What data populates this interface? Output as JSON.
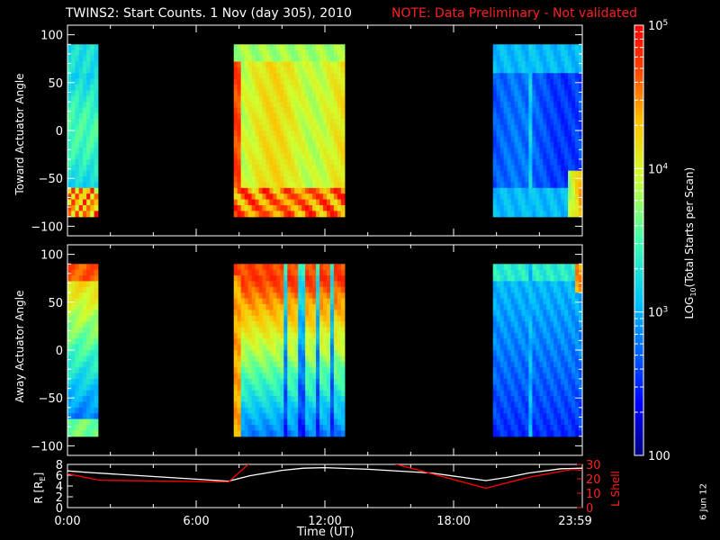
{
  "header": {
    "title": "TWINS2: Start Counts.  1 Nov (day 305), 2010",
    "note": "NOTE: Data Preliminary - Not validated"
  },
  "stamp": "6 Jun 12",
  "chart_data": [
    {
      "type": "heatmap",
      "panel": "toward",
      "ylabel": "Toward Actuator Angle",
      "ylim": [
        -110,
        110
      ],
      "yticks": [
        "100",
        "50",
        "0",
        "-50",
        "-100"
      ],
      "xlim_hours": [
        0,
        24
      ],
      "data_blocks_ut": [
        [
          "0:00",
          "1:25"
        ],
        [
          "7:45",
          "12:55"
        ],
        [
          "19:50",
          "24:00"
        ]
      ],
      "colorscale": "rainbow (blue low, red high)",
      "description_levels": {
        "block1": "cyan-green, red/orange speckle near -80",
        "block2": "yellow-orange, red near -80 and at start",
        "block3": "blue, cyan at top/bottom edges"
      }
    },
    {
      "type": "heatmap",
      "panel": "away",
      "ylabel": "Away Actuator Angle",
      "ylim": [
        -110,
        110
      ],
      "yticks": [
        "100",
        "50",
        "0",
        "-50",
        "-100"
      ],
      "xlim_hours": [
        0,
        24
      ],
      "data_blocks_ut": [
        [
          "0:00",
          "1:25"
        ],
        [
          "7:45",
          "12:55"
        ],
        [
          "19:50",
          "24:00"
        ]
      ],
      "colorscale": "rainbow (blue low, red high)"
    },
    {
      "type": "colorbar",
      "label": "LOG10(Total Starts per Scan)",
      "label_main": "LOG",
      "label_sub": "10",
      "label_rest": "(Total Starts per Scan)",
      "ticks": [
        "10^5",
        "10^4",
        "10^3",
        "100"
      ],
      "range_log10": [
        2,
        5
      ]
    },
    {
      "type": "line",
      "panel": "orbit",
      "ylabel_left": "R [RE]",
      "ylabel_left_main": "R [R",
      "ylabel_left_sub": "E",
      "ylabel_left_tail": "]",
      "ylabel_right": "L Shell",
      "ylim_left": [
        0,
        8
      ],
      "yticks_left": [
        "8",
        "6",
        "4",
        "2",
        "0"
      ],
      "ylim_right": [
        0,
        30
      ],
      "yticks_right": [
        "30",
        "20",
        "10",
        "0"
      ],
      "xlabel": "Time (UT)",
      "xticks": [
        "0:00",
        "6:00",
        "12:00",
        "18:00",
        "23:59"
      ],
      "series": [
        {
          "color": "#ffffff",
          "x": [
            0,
            1,
            7.5,
            8.5,
            10,
            11,
            12,
            14,
            17,
            19.5,
            20.5,
            21.5,
            23,
            24
          ],
          "y": [
            6.8,
            6.5,
            4.9,
            5.9,
            6.9,
            7.3,
            7.4,
            7.1,
            6.4,
            5.0,
            5.6,
            6.4,
            7.2,
            7.3
          ]
        },
        {
          "color": "#ff0000",
          "x": [
            0,
            1.5,
            7.5,
            8.5,
            15.1,
            19.5,
            21.5,
            23.5,
            24
          ],
          "y": [
            23.5,
            19,
            17.8,
            31,
            31,
            13.5,
            21,
            26.5,
            26
          ]
        }
      ]
    }
  ]
}
